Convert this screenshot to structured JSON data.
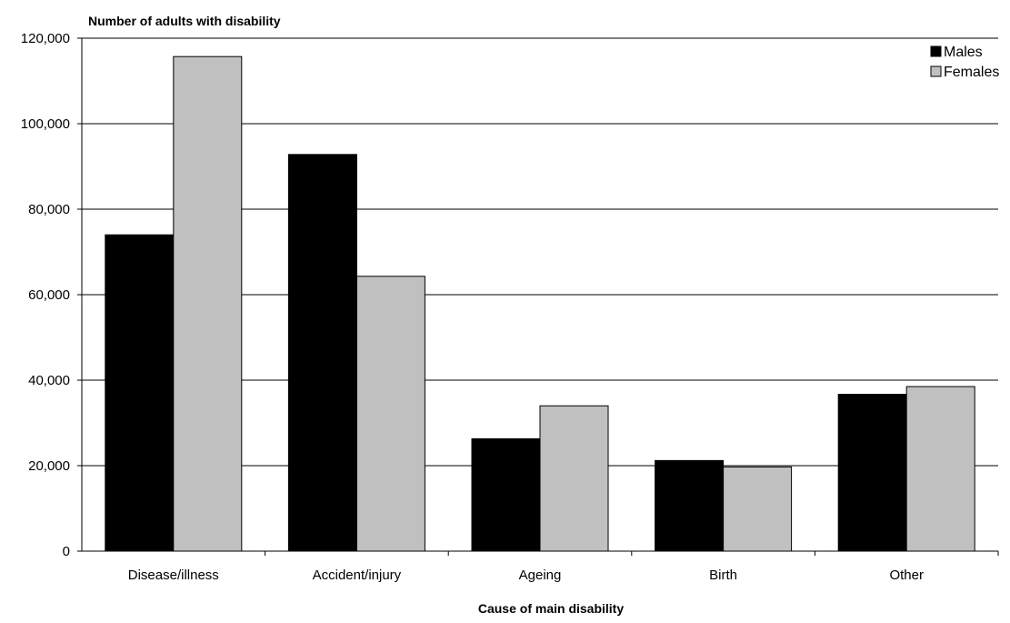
{
  "chart_data": {
    "type": "bar",
    "title": "",
    "ylabel": "Number of adults with disability",
    "xlabel": "Cause of main disability",
    "categories": [
      "Disease/illness",
      "Accident/injury",
      "Ageing",
      "Birth",
      "Other"
    ],
    "series": [
      {
        "name": "Males",
        "values": [
          74000,
          92800,
          26300,
          21200,
          36700
        ],
        "color": "#000000"
      },
      {
        "name": "Females",
        "values": [
          115700,
          64300,
          34000,
          19700,
          38500
        ],
        "color": "#c0c0c0"
      }
    ],
    "ylim": [
      0,
      120000
    ],
    "yticks": [
      0,
      20000,
      40000,
      60000,
      80000,
      100000,
      120000
    ],
    "ytick_labels": [
      "0",
      "20,000",
      "40,000",
      "60,000",
      "80,000",
      "100,000",
      "120,000"
    ],
    "grid": true,
    "legend_position": "top-right"
  }
}
